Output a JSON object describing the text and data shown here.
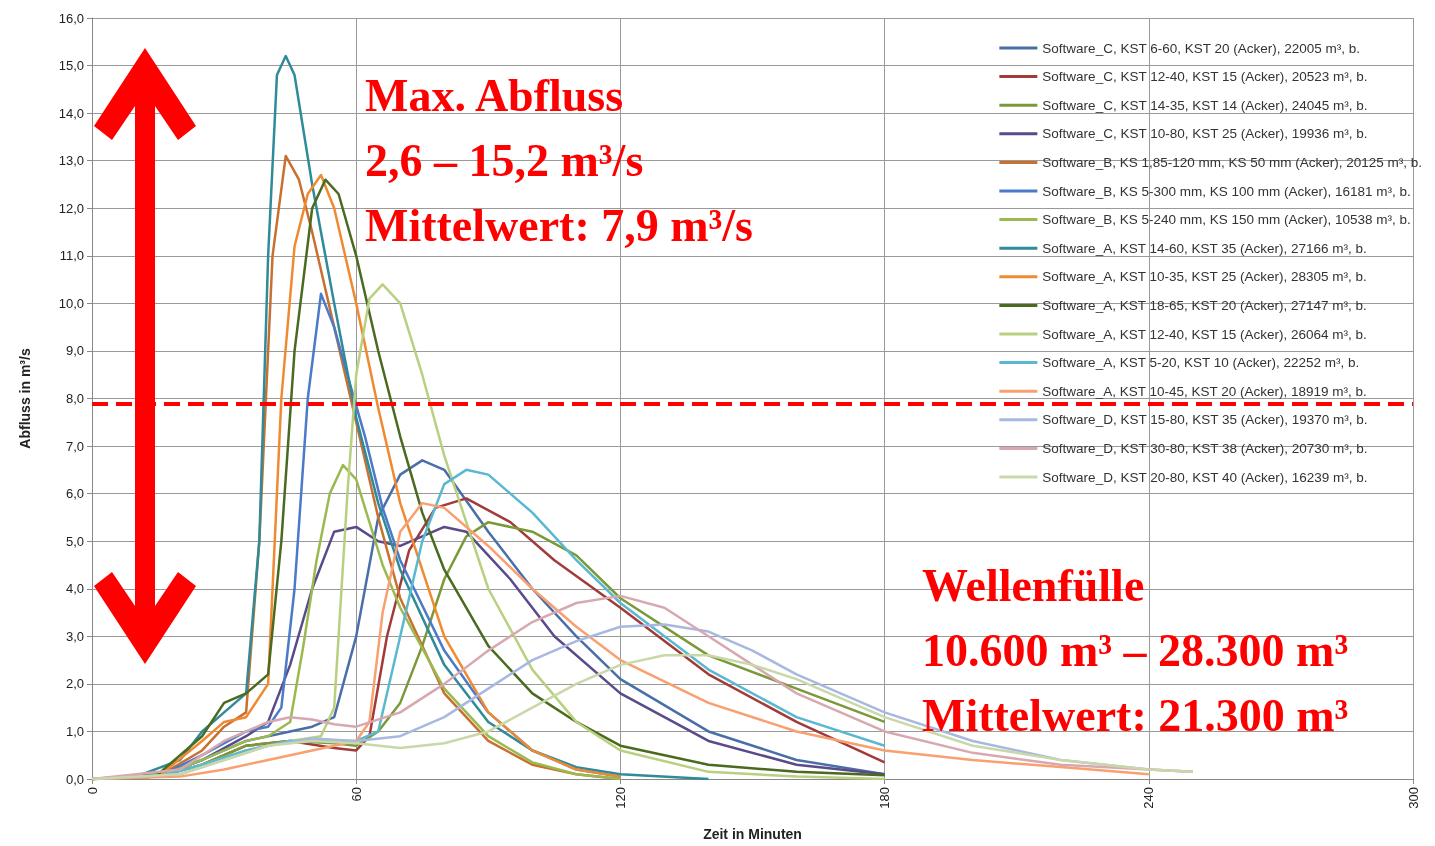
{
  "chart_data": {
    "type": "line",
    "xlabel": "Zeit in Minuten",
    "ylabel": "Abfluss in m³/s",
    "xlim": [
      0,
      300
    ],
    "xticks": [
      0,
      60,
      120,
      180,
      240,
      300
    ],
    "ylim": [
      0,
      16
    ],
    "yticks": [
      {
        "value": 0,
        "label": "0,0"
      },
      {
        "value": 1,
        "label": "1,0"
      },
      {
        "value": 2,
        "label": "2,0"
      },
      {
        "value": 3,
        "label": "3,0"
      },
      {
        "value": 4,
        "label": "4,0"
      },
      {
        "value": 5,
        "label": "5,0"
      },
      {
        "value": 6,
        "label": "6,0"
      },
      {
        "value": 7,
        "label": "7,0"
      },
      {
        "value": 8,
        "label": "8,0"
      },
      {
        "value": 9,
        "label": "9,0"
      },
      {
        "value": 10,
        "label": "10,0"
      },
      {
        "value": 11,
        "label": "11,0"
      },
      {
        "value": 12,
        "label": "12,0"
      },
      {
        "value": 13,
        "label": "13,0"
      },
      {
        "value": 14,
        "label": "14,0"
      },
      {
        "value": 15,
        "label": "15,0"
      },
      {
        "value": 16,
        "label": "16,0"
      }
    ],
    "grid": true,
    "legend": "top right",
    "marker": "none",
    "line_style": "solid",
    "ref_lines": [
      {
        "axis": "y",
        "value": 7.9,
        "color": "#ff0000",
        "line_style": "dashed"
      }
    ],
    "annotations": [
      "Max. Abfluss",
      "2,6 – 15,2 m³/s",
      "Mittelwert: 7,9 m³/s",
      "Wellenfülle",
      "10.600 m³ – 28.300 m³",
      "Mittelwert: 21.300 m³"
    ],
    "series": [
      {
        "name": "Software_C, KST 6-60, KST 20 (Acker), 22005 m³, b.",
        "color": "#4a6ea8",
        "x": [
          0,
          15,
          25,
          35,
          45,
          50,
          55,
          60,
          65,
          70,
          75,
          80,
          90,
          100,
          110,
          120,
          140,
          160,
          180
        ],
        "values": [
          0,
          0.05,
          0.4,
          0.8,
          1.0,
          1.1,
          1.3,
          3,
          5.5,
          6.4,
          6.7,
          6.5,
          5.2,
          4.0,
          3.0,
          2.1,
          1.0,
          0.4,
          0.1
        ]
      },
      {
        "name": "Software_C, KST 12-40, KST 15 (Acker), 20523 m³, b.",
        "color": "#a33a3a",
        "x": [
          0,
          15,
          25,
          35,
          45,
          55,
          60,
          63,
          67,
          72,
          78,
          85,
          95,
          105,
          120,
          140,
          160,
          180
        ],
        "values": [
          0,
          0.05,
          0.3,
          0.7,
          0.8,
          0.65,
          0.6,
          0.9,
          3,
          4.8,
          5.7,
          5.9,
          5.4,
          4.6,
          3.6,
          2.2,
          1.2,
          0.35
        ]
      },
      {
        "name": "Software_C, KST 14-35, KST 14 (Acker), 24045 m³, b.",
        "color": "#7a9a3a",
        "x": [
          0,
          15,
          25,
          35,
          45,
          55,
          60,
          65,
          70,
          75,
          80,
          85,
          90,
          100,
          110,
          120,
          140,
          160,
          180
        ],
        "values": [
          0,
          0.05,
          0.3,
          0.7,
          0.8,
          0.75,
          0.7,
          1.0,
          1.6,
          2.8,
          4.2,
          5.1,
          5.4,
          5.2,
          4.7,
          3.8,
          2.6,
          1.9,
          1.2
        ]
      },
      {
        "name": "Software_C, KST 10-80, KST 25 (Acker), 19936 m³, b.",
        "color": "#5a4a8a",
        "x": [
          0,
          15,
          25,
          35,
          40,
          45,
          50,
          55,
          60,
          65,
          70,
          75,
          80,
          85,
          95,
          105,
          120,
          140,
          160,
          180
        ],
        "values": [
          0,
          0.05,
          0.4,
          0.9,
          1.2,
          2.4,
          4.0,
          5.2,
          5.3,
          5.0,
          4.9,
          5.1,
          5.3,
          5.2,
          4.2,
          3.0,
          1.8,
          0.8,
          0.3,
          0.1
        ]
      },
      {
        "name": "Software_B, KS 1,85-120 mm, KS 50 mm (Acker), 20125 m³, b.",
        "color": "#c87030",
        "x": [
          0,
          15,
          25,
          30,
          35,
          38,
          41,
          44,
          47,
          50,
          55,
          60,
          65,
          70,
          80,
          90,
          100,
          110,
          120
        ],
        "values": [
          0,
          0.05,
          0.6,
          1.1,
          1.4,
          5,
          11,
          13.1,
          12.6,
          11.5,
          9.5,
          7.5,
          5.5,
          3.8,
          1.8,
          0.8,
          0.3,
          0.1,
          0
        ]
      },
      {
        "name": "Software_B, KS 5-300 mm, KS 100 mm (Acker), 16181 m³, b.",
        "color": "#4a7ac8",
        "x": [
          0,
          15,
          25,
          35,
          40,
          43,
          46,
          49,
          52,
          55,
          58,
          62,
          66,
          70,
          80,
          90,
          100,
          110,
          120
        ],
        "values": [
          0,
          0.05,
          0.5,
          1.0,
          1.1,
          1.5,
          4,
          8,
          10.2,
          9.5,
          8.5,
          7.2,
          5.7,
          4.6,
          2.7,
          1.4,
          0.6,
          0.2,
          0.05
        ]
      },
      {
        "name": "Software_B, KS 5-240 mm, KS 150 mm (Acker), 10538 m³, b.",
        "color": "#9aba50",
        "x": [
          0,
          15,
          25,
          35,
          40,
          45,
          48,
          51,
          54,
          57,
          60,
          63,
          66,
          70,
          80,
          90,
          100,
          110,
          120
        ],
        "values": [
          0,
          0.05,
          0.4,
          0.8,
          0.9,
          1.2,
          2.8,
          4.6,
          6.0,
          6.6,
          6.3,
          5.4,
          4.5,
          3.6,
          1.9,
          0.9,
          0.35,
          0.1,
          0
        ]
      },
      {
        "name": "Software_A, KST 14-60, KST 35 (Acker), 27166 m³, b.",
        "color": "#2f8a9a",
        "x": [
          0,
          10,
          20,
          25,
          30,
          35,
          38,
          40,
          42,
          44,
          46,
          50,
          55,
          60,
          65,
          70,
          80,
          90,
          100,
          110,
          120,
          140
        ],
        "values": [
          0,
          0.05,
          0.4,
          1.0,
          1.4,
          1.8,
          5,
          11,
          14.8,
          15.2,
          14.8,
          12.5,
          10,
          7.6,
          5.8,
          4.4,
          2.4,
          1.2,
          0.6,
          0.25,
          0.1,
          0
        ]
      },
      {
        "name": "Software_A, KST 10-35, KST 25 (Acker), 28305 m³, b.",
        "color": "#f08a30",
        "x": [
          0,
          15,
          25,
          30,
          35,
          40,
          43,
          46,
          49,
          52,
          55,
          60,
          65,
          70,
          80,
          90,
          100,
          110,
          120
        ],
        "values": [
          0,
          0.05,
          0.8,
          1.2,
          1.3,
          2,
          8,
          11.2,
          12.3,
          12.7,
          12,
          10,
          7.8,
          5.8,
          3.0,
          1.4,
          0.6,
          0.2,
          0.05
        ]
      },
      {
        "name": "Software_A, KST 18-65, KST 20 (Acker), 27147 m³, b.",
        "color": "#4a6a20",
        "x": [
          0,
          15,
          25,
          30,
          35,
          40,
          43,
          46,
          50,
          53,
          56,
          60,
          65,
          70,
          75,
          80,
          90,
          100,
          110,
          120,
          140,
          160,
          180
        ],
        "values": [
          0,
          0.1,
          0.9,
          1.6,
          1.8,
          2.2,
          5,
          9,
          12,
          12.6,
          12.3,
          11,
          9,
          7.2,
          5.6,
          4.4,
          2.8,
          1.8,
          1.2,
          0.7,
          0.3,
          0.15,
          0.08
        ]
      },
      {
        "name": "Software_A, KST 12-40, KST 15 (Acker), 26064 m³, b.",
        "color": "#b8d080",
        "x": [
          0,
          15,
          25,
          35,
          45,
          52,
          55,
          58,
          60,
          63,
          66,
          70,
          75,
          80,
          90,
          100,
          110,
          120,
          140,
          160,
          180
        ],
        "values": [
          0,
          0.05,
          0.3,
          0.6,
          0.8,
          0.9,
          1.5,
          6,
          8.5,
          10.1,
          10.4,
          10,
          8.5,
          6.8,
          4.0,
          2.3,
          1.2,
          0.6,
          0.15,
          0.05,
          0
        ]
      },
      {
        "name": "Software_A, KST 5-20, KST 10 (Acker), 22252 m³, b.",
        "color": "#5ab8d0",
        "x": [
          0,
          15,
          25,
          35,
          45,
          55,
          60,
          65,
          70,
          75,
          80,
          85,
          90,
          100,
          110,
          120,
          140,
          160,
          180
        ],
        "values": [
          0,
          0.05,
          0.3,
          0.6,
          0.8,
          0.8,
          0.8,
          1,
          3,
          5,
          6.2,
          6.5,
          6.4,
          5.6,
          4.6,
          3.7,
          2.3,
          1.3,
          0.7
        ]
      },
      {
        "name": "Software_A, KST 10-45, KST 20 (Acker), 18919 m³, b.",
        "color": "#f8a070",
        "x": [
          0,
          20,
          30,
          40,
          50,
          55,
          60,
          63,
          66,
          70,
          75,
          80,
          90,
          100,
          110,
          120,
          140,
          160,
          180,
          200,
          220,
          240
        ],
        "values": [
          0,
          0.05,
          0.2,
          0.4,
          0.6,
          0.7,
          0.8,
          1.2,
          3.5,
          5.2,
          5.8,
          5.7,
          4.9,
          4.0,
          3.2,
          2.5,
          1.6,
          1.0,
          0.6,
          0.4,
          0.25,
          0.1
        ]
      },
      {
        "name": "Software_D, KST 15-80, KST 35 (Acker), 19370 m³, b.",
        "color": "#a8b8e0",
        "x": [
          0,
          20,
          30,
          40,
          50,
          60,
          70,
          80,
          90,
          100,
          110,
          120,
          130,
          140,
          150,
          160,
          180,
          200,
          220,
          240,
          250
        ],
        "values": [
          0,
          0.1,
          0.4,
          0.7,
          0.85,
          0.8,
          0.9,
          1.3,
          1.9,
          2.5,
          2.9,
          3.2,
          3.25,
          3.1,
          2.7,
          2.2,
          1.4,
          0.8,
          0.4,
          0.2,
          0.15
        ]
      },
      {
        "name": "Software_D, KST 30-80, KST 38 (Acker), 20730 m³, b.",
        "color": "#d8a8b0",
        "x": [
          0,
          20,
          30,
          40,
          45,
          50,
          55,
          60,
          70,
          80,
          90,
          100,
          110,
          120,
          130,
          140,
          150,
          160,
          180,
          200,
          220,
          240,
          250
        ],
        "values": [
          0,
          0.2,
          0.8,
          1.2,
          1.3,
          1.25,
          1.15,
          1.1,
          1.4,
          2.0,
          2.7,
          3.3,
          3.7,
          3.85,
          3.6,
          3.0,
          2.4,
          1.8,
          1.0,
          0.55,
          0.3,
          0.2,
          0.15
        ]
      },
      {
        "name": "Software_D, KST 20-80, KST 40 (Acker), 16239 m³, b.",
        "color": "#c8d8a8",
        "x": [
          0,
          20,
          30,
          40,
          50,
          60,
          70,
          80,
          90,
          100,
          110,
          120,
          130,
          140,
          150,
          160,
          180,
          200,
          220,
          240,
          250
        ],
        "values": [
          0,
          0.1,
          0.4,
          0.7,
          0.8,
          0.75,
          0.65,
          0.75,
          1.0,
          1.5,
          2.0,
          2.4,
          2.6,
          2.6,
          2.4,
          2.1,
          1.3,
          0.7,
          0.4,
          0.2,
          0.15
        ]
      }
    ]
  }
}
